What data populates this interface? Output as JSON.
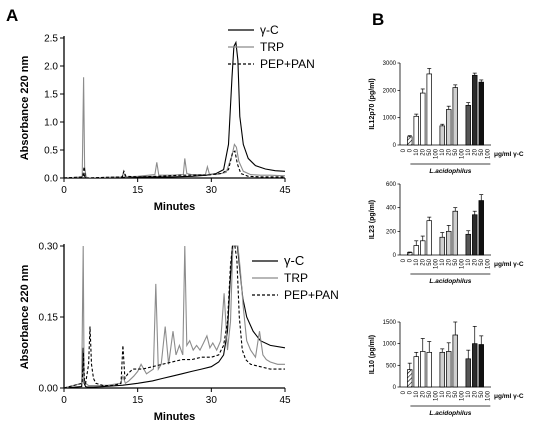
{
  "figure": {
    "panel_a_label": "A",
    "panel_b_label": "B"
  },
  "chart_data": [
    {
      "type": "line",
      "panel": "A",
      "xlabel": "Minutes",
      "ylabel": "Absorbance 220 nm",
      "xlim": [
        0,
        45
      ],
      "ylim": [
        0,
        2.5
      ],
      "xticks": [
        "0",
        "15",
        "30",
        "45"
      ],
      "yticks": [
        "0.0",
        "0.5",
        "1.0",
        "1.5",
        "2.0",
        "2.5"
      ],
      "legend_position": "top-right",
      "series": [
        {
          "name": "γ-C",
          "color": "#000000",
          "dash": "solid",
          "x": [
            0,
            3.6,
            4.0,
            4.3,
            4.6,
            5,
            8,
            12,
            15,
            18,
            22,
            26,
            29,
            31,
            32.5,
            33.5,
            34.2,
            34.6,
            35.0,
            35.4,
            35.8,
            36.5,
            37.5,
            39,
            41,
            43,
            45
          ],
          "y": [
            0.0,
            0.01,
            0.06,
            0.02,
            0.0,
            0.0,
            0.0,
            0.01,
            0.02,
            0.02,
            0.02,
            0.03,
            0.05,
            0.08,
            0.15,
            0.6,
            1.8,
            2.35,
            2.42,
            2.1,
            1.1,
            0.6,
            0.35,
            0.22,
            0.16,
            0.13,
            0.12
          ]
        },
        {
          "name": "TRP",
          "color": "#8c8c8c",
          "dash": "solid",
          "x": [
            0,
            3.7,
            4.0,
            4.2,
            4.5,
            5,
            8,
            11.8,
            12.1,
            12.5,
            15,
            18.5,
            18.9,
            19.3,
            22,
            24.3,
            24.6,
            25.0,
            26,
            28.8,
            29.2,
            29.6,
            31,
            33,
            34.2,
            34.7,
            35.1,
            35.6,
            36.5,
            38,
            40,
            42,
            45
          ],
          "y": [
            0.0,
            0.02,
            1.8,
            0.2,
            0.02,
            0.0,
            0.01,
            0.02,
            0.1,
            0.02,
            0.03,
            0.06,
            0.28,
            0.05,
            0.05,
            0.06,
            0.35,
            0.08,
            0.06,
            0.06,
            0.2,
            0.07,
            0.06,
            0.1,
            0.4,
            0.6,
            0.55,
            0.3,
            0.12,
            0.06,
            0.05,
            0.05,
            0.04
          ]
        },
        {
          "name": "PEP+PAN",
          "color": "#000000",
          "dash": "dashed",
          "x": [
            0,
            3.8,
            4.1,
            4.3,
            4.6,
            5,
            8,
            11.9,
            12.2,
            12.6,
            15,
            19,
            24,
            29,
            32,
            33.5,
            34.3,
            34.8,
            35.3,
            36,
            37.5,
            40,
            45
          ],
          "y": [
            0.0,
            0.02,
            0.2,
            0.05,
            0.0,
            0.0,
            0.01,
            0.02,
            0.12,
            0.03,
            0.02,
            0.03,
            0.05,
            0.05,
            0.08,
            0.15,
            0.45,
            0.48,
            0.25,
            0.08,
            0.03,
            0.02,
            0.02
          ]
        }
      ]
    },
    {
      "type": "line",
      "panel": "A-zoom",
      "xlabel": "Minutes",
      "ylabel": "Absorbance 220 nm",
      "xlim": [
        0,
        45
      ],
      "ylim": [
        0,
        0.3
      ],
      "xticks": [
        "0",
        "15",
        "30",
        "45"
      ],
      "yticks": [
        "0.00",
        "0.15",
        "0.30"
      ],
      "legend_position": "top-right",
      "series": [
        {
          "name": "γ-C",
          "color": "#000000",
          "dash": "solid",
          "x": [
            0,
            3.6,
            3.9,
            4.1,
            4.4,
            4.8,
            6,
            8,
            12,
            15,
            18,
            20,
            22,
            24,
            26,
            28,
            30,
            31.5,
            32.5,
            33.3,
            33.8,
            34.3,
            34.8,
            35.3,
            35.8,
            36.4,
            37.2,
            38.5,
            40,
            42,
            45
          ],
          "y": [
            0.0,
            0.003,
            0.085,
            0.01,
            0.003,
            0.002,
            0.002,
            0.003,
            0.006,
            0.01,
            0.015,
            0.02,
            0.025,
            0.03,
            0.035,
            0.04,
            0.045,
            0.055,
            0.07,
            0.12,
            0.22,
            0.3,
            0.3,
            0.3,
            0.25,
            0.19,
            0.15,
            0.12,
            0.1,
            0.09,
            0.085
          ]
        },
        {
          "name": "TRP",
          "color": "#8c8c8c",
          "dash": "solid",
          "x": [
            0,
            3.6,
            3.9,
            4.1,
            4.4,
            5,
            7,
            9,
            11.5,
            12.0,
            12.5,
            13.2,
            14.2,
            15.0,
            15.7,
            16.8,
            17.5,
            18.2,
            18.7,
            19.2,
            19.8,
            20.6,
            21.3,
            22.2,
            22.8,
            23.5,
            24.2,
            24.6,
            25.0,
            25.6,
            26.3,
            27.0,
            27.7,
            28.4,
            29.1,
            29.7,
            30.3,
            31.1,
            31.9,
            32.6,
            33.3,
            33.9,
            34.4,
            34.9,
            35.4,
            35.9,
            36.5,
            37.2,
            38.0,
            39.0,
            39.8,
            40.5,
            41.2,
            42,
            43.5,
            45
          ],
          "y": [
            0.0,
            0.01,
            0.3,
            0.02,
            0.01,
            0.005,
            0.005,
            0.006,
            0.01,
            0.025,
            0.01,
            0.015,
            0.025,
            0.035,
            0.05,
            0.03,
            0.035,
            0.04,
            0.22,
            0.04,
            0.05,
            0.13,
            0.05,
            0.12,
            0.07,
            0.09,
            0.07,
            0.3,
            0.09,
            0.1,
            0.08,
            0.09,
            0.08,
            0.095,
            0.11,
            0.085,
            0.095,
            0.08,
            0.1,
            0.2,
            0.08,
            0.14,
            0.3,
            0.3,
            0.3,
            0.25,
            0.17,
            0.1,
            0.08,
            0.065,
            0.12,
            0.07,
            0.06,
            0.055,
            0.05,
            0.05
          ]
        },
        {
          "name": "PEP+PAN",
          "color": "#000000",
          "dash": "dashed",
          "x": [
            0,
            3.7,
            3.95,
            4.15,
            4.4,
            5.0,
            5.3,
            5.6,
            6.0,
            6.5,
            8,
            10,
            11.6,
            12.0,
            12.4,
            13.0,
            14,
            16,
            18,
            20,
            22,
            24,
            26,
            28,
            30,
            31.5,
            32.5,
            33.3,
            33.9,
            34.3,
            34.8,
            35.2,
            35.7,
            36.3,
            37,
            38,
            40,
            42,
            45
          ],
          "y": [
            0.0,
            0.01,
            0.075,
            0.015,
            0.01,
            0.05,
            0.13,
            0.05,
            0.02,
            0.01,
            0.005,
            0.005,
            0.01,
            0.09,
            0.02,
            0.03,
            0.04,
            0.04,
            0.045,
            0.05,
            0.055,
            0.06,
            0.06,
            0.065,
            0.065,
            0.07,
            0.09,
            0.14,
            0.26,
            0.3,
            0.3,
            0.27,
            0.15,
            0.08,
            0.06,
            0.05,
            0.045,
            0.04,
            0.04
          ]
        }
      ]
    },
    {
      "type": "bar",
      "panel": "B-IL12p70",
      "ylabel": "IL12p70 (pg/ml)",
      "ylim": [
        0,
        3000
      ],
      "yticks": [
        "0",
        "1000",
        "2000",
        "3000"
      ],
      "categories": [
        "0",
        "0",
        "10",
        "20",
        "50",
        "100",
        "10",
        "20",
        "50",
        "100",
        "10",
        "20",
        "50",
        "100"
      ],
      "values": [
        0,
        300,
        1050,
        1900,
        2600,
        0,
        700,
        1300,
        2100,
        0,
        1450,
        2550,
        2300,
        0
      ],
      "errors": [
        0,
        40,
        80,
        150,
        200,
        0,
        60,
        120,
        100,
        0,
        100,
        80,
        80,
        0
      ],
      "fills": [
        "none",
        "hatch",
        "#ffffff",
        "#ffffff",
        "#ffffff",
        "none",
        "#cfcfcf",
        "#cfcfcf",
        "#cfcfcf",
        "none",
        "#555555",
        "#2b2b2b",
        "#111111",
        "none"
      ],
      "xunit": "μg/ml γ-C",
      "group_label": "L.acidophilus"
    },
    {
      "type": "bar",
      "panel": "B-IL23",
      "ylabel": "IL23 (pg/ml)",
      "ylim": [
        0,
        600
      ],
      "yticks": [
        "0",
        "200",
        "400",
        "600"
      ],
      "categories": [
        "0",
        "0",
        "10",
        "20",
        "50",
        "100",
        "10",
        "20",
        "50",
        "100",
        "10",
        "20",
        "50",
        "100"
      ],
      "values": [
        0,
        20,
        80,
        120,
        290,
        0,
        150,
        200,
        370,
        0,
        175,
        340,
        460,
        0
      ],
      "errors": [
        0,
        5,
        40,
        40,
        30,
        0,
        40,
        50,
        30,
        0,
        30,
        30,
        50,
        0
      ],
      "fills": [
        "none",
        "hatch",
        "#ffffff",
        "#ffffff",
        "#ffffff",
        "none",
        "#cfcfcf",
        "#cfcfcf",
        "#cfcfcf",
        "none",
        "#555555",
        "#2b2b2b",
        "#111111",
        "none"
      ],
      "xunit": "μg/ml γ-C",
      "group_label": "L.acidophilus"
    },
    {
      "type": "bar",
      "panel": "B-IL10",
      "ylabel": "IL10 (pg/ml)",
      "ylim": [
        0,
        1500
      ],
      "yticks": [
        "0",
        "500",
        "1000",
        "1500"
      ],
      "categories": [
        "0",
        "0",
        "10",
        "20",
        "50",
        "100",
        "10",
        "20",
        "50",
        "100",
        "10",
        "20",
        "50",
        "100"
      ],
      "values": [
        0,
        400,
        700,
        820,
        800,
        0,
        800,
        820,
        1200,
        0,
        650,
        1000,
        980,
        0
      ],
      "errors": [
        0,
        150,
        100,
        300,
        250,
        0,
        80,
        200,
        300,
        0,
        200,
        400,
        200,
        0
      ],
      "fills": [
        "none",
        "hatch",
        "#ffffff",
        "#ffffff",
        "#ffffff",
        "none",
        "#cfcfcf",
        "#cfcfcf",
        "#cfcfcf",
        "none",
        "#555555",
        "#2b2b2b",
        "#111111",
        "none"
      ],
      "xunit": "μg/ml γ-C",
      "group_label": "L.acidophilus"
    }
  ]
}
